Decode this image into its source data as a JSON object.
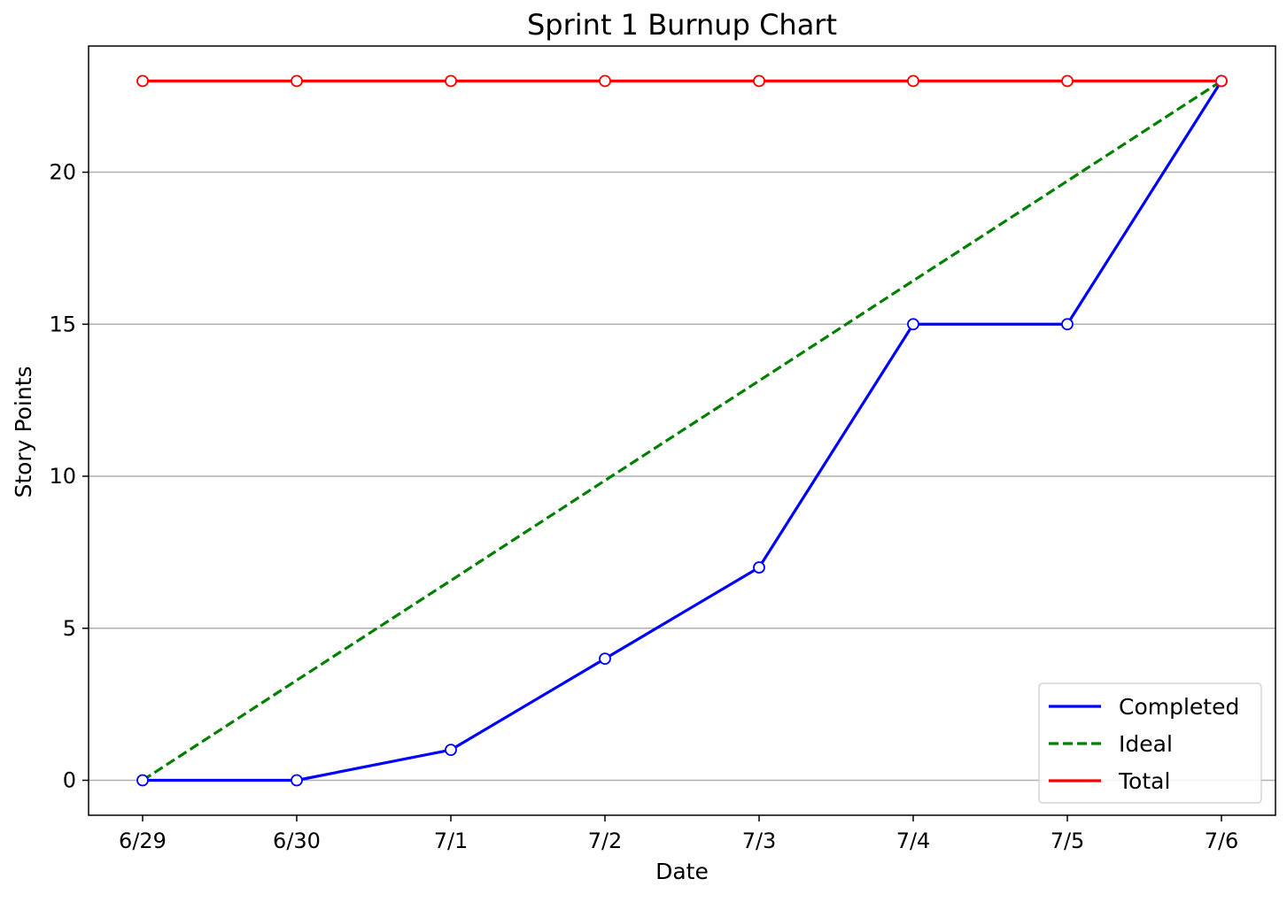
{
  "chart_data": {
    "type": "line",
    "title": "Sprint 1 Burnup Chart",
    "xlabel": "Date",
    "ylabel": "Story Points",
    "categories": [
      "6/29",
      "6/30",
      "7/1",
      "7/2",
      "7/3",
      "7/4",
      "7/5",
      "7/6"
    ],
    "ylim": [
      -1.15,
      24.15
    ],
    "yticks": [
      0,
      5,
      10,
      15,
      20
    ],
    "grid": "y",
    "legend_position": "lower right",
    "series": [
      {
        "name": "Completed",
        "values": [
          0,
          0,
          1,
          4,
          7,
          15,
          15,
          23
        ],
        "color": "#0000ff",
        "style": "solid",
        "markers": true
      },
      {
        "name": "Ideal",
        "values": [
          0,
          3.29,
          6.57,
          9.86,
          13.14,
          16.43,
          19.71,
          23
        ],
        "color": "#008000",
        "style": "dashed",
        "markers": false
      },
      {
        "name": "Total",
        "values": [
          23,
          23,
          23,
          23,
          23,
          23,
          23,
          23
        ],
        "color": "#ff0000",
        "style": "solid",
        "markers": true
      }
    ]
  }
}
